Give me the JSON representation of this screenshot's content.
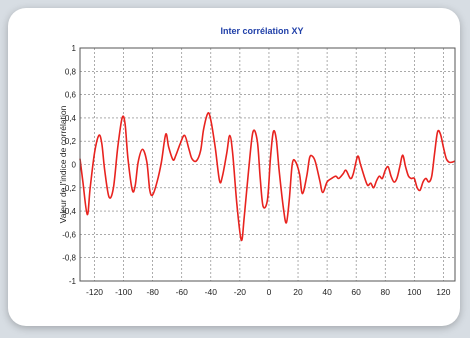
{
  "chart_data": {
    "type": "line",
    "title": "Inter corrélation XY",
    "xlabel": "",
    "ylabel": "Valeur de l'indice de corrélation",
    "xlim": [
      -130,
      128
    ],
    "ylim": [
      -1,
      1
    ],
    "grid": true,
    "xticks": [
      "-120",
      "-100",
      "-80",
      "-60",
      "-40",
      "-20",
      "0",
      "20",
      "40",
      "60",
      "80",
      "100",
      "120"
    ],
    "yticks": [
      "1",
      "0,8",
      "0,6",
      "0,4",
      "0,2",
      "0",
      "-0,2",
      "-0,4",
      "-0,6",
      "-0,8",
      "-1"
    ],
    "xtick_values": [
      -120,
      -100,
      -80,
      -60,
      -40,
      -20,
      0,
      20,
      40,
      60,
      80,
      100,
      120
    ],
    "ytick_values": [
      1,
      0.8,
      0.6,
      0.4,
      0.2,
      0,
      -0.2,
      -0.4,
      -0.6,
      -0.8,
      -1
    ],
    "series": [
      {
        "color": "#e8231f",
        "x": [
          -130,
          -128,
          -125,
          -123,
          -120,
          -117,
          -115,
          -113,
          -110,
          -107,
          -104,
          -101,
          -99,
          -97,
          -94,
          -92,
          -90,
          -87,
          -84,
          -82,
          -80,
          -77,
          -74,
          -71,
          -69,
          -66,
          -64,
          -61,
          -58,
          -55,
          -53,
          -50,
          -47,
          -45,
          -42,
          -40,
          -37,
          -34,
          -32,
          -29,
          -27,
          -25,
          -22,
          -19,
          -17,
          -14,
          -11,
          -8,
          -6,
          -4,
          -1,
          1,
          3,
          5,
          7,
          10,
          12,
          14,
          16,
          18,
          21,
          23,
          26,
          28,
          30,
          32,
          35,
          37,
          40,
          43,
          46,
          48,
          51,
          53,
          56,
          58,
          61,
          63,
          66,
          68,
          70,
          72,
          74,
          76,
          78,
          80,
          82,
          84,
          86,
          88,
          90,
          92,
          94,
          96,
          98,
          100,
          102,
          104,
          106,
          108,
          110,
          112,
          114,
          116,
          118,
          120,
          122,
          124,
          126,
          128
        ],
        "y": [
          0.05,
          -0.15,
          -0.43,
          -0.2,
          0.1,
          0.25,
          0.18,
          -0.05,
          -0.28,
          -0.2,
          0.15,
          0.4,
          0.35,
          0.05,
          -0.22,
          -0.18,
          0.02,
          0.13,
          0.02,
          -0.22,
          -0.26,
          -0.15,
          0.02,
          0.26,
          0.15,
          0.04,
          0.08,
          0.18,
          0.25,
          0.13,
          0.05,
          0.03,
          0.12,
          0.3,
          0.44,
          0.38,
          0.15,
          -0.14,
          -0.1,
          0.1,
          0.25,
          0.1,
          -0.35,
          -0.65,
          -0.45,
          -0.05,
          0.28,
          0.2,
          -0.12,
          -0.36,
          -0.3,
          0.05,
          0.28,
          0.22,
          -0.05,
          -0.38,
          -0.5,
          -0.3,
          0.0,
          0.03,
          -0.08,
          -0.25,
          -0.1,
          0.06,
          0.07,
          0.02,
          -0.14,
          -0.24,
          -0.15,
          -0.12,
          -0.1,
          -0.12,
          -0.08,
          -0.05,
          -0.12,
          -0.08,
          0.07,
          0.0,
          -0.12,
          -0.18,
          -0.16,
          -0.2,
          -0.14,
          -0.1,
          -0.12,
          -0.05,
          -0.02,
          -0.1,
          -0.15,
          -0.12,
          -0.02,
          0.08,
          -0.02,
          -0.1,
          -0.12,
          -0.12,
          -0.2,
          -0.22,
          -0.15,
          -0.12,
          -0.15,
          -0.1,
          0.1,
          0.28,
          0.26,
          0.15,
          0.05,
          0.02,
          0.02,
          0.03
        ]
      }
    ]
  }
}
